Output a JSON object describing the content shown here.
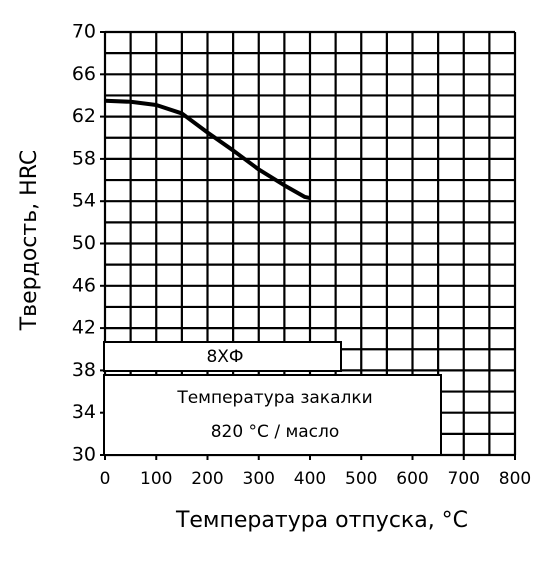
{
  "chart_data": {
    "type": "line",
    "xlabel": "Температура отпуска, °C",
    "ylabel": "Твердость, HRC",
    "x": [
      0,
      50,
      100,
      150,
      200,
      250,
      300,
      350,
      390,
      400
    ],
    "series": [
      {
        "name": "8ХФ",
        "color": "#000000",
        "values": [
          63.5,
          63.4,
          63.1,
          62.3,
          60.5,
          58.8,
          57,
          55.5,
          54.4,
          54.3
        ]
      }
    ],
    "annotations": [
      "Температура закалки",
      "820 °C / масло"
    ],
    "xlim": [
      0,
      800
    ],
    "ylim": [
      30,
      70
    ],
    "xticks": [
      0,
      100,
      200,
      300,
      400,
      500,
      600,
      700,
      800
    ],
    "yticks": [
      30,
      34,
      38,
      42,
      46,
      50,
      54,
      58,
      62,
      66,
      70
    ],
    "xgrid": [
      0,
      50,
      100,
      150,
      200,
      250,
      300,
      350,
      400,
      450,
      500,
      550,
      600,
      650,
      700,
      750,
      800
    ],
    "ygrid": [
      30,
      32,
      34,
      36,
      38,
      40,
      42,
      44,
      46,
      48,
      50,
      52,
      54,
      56,
      58,
      60,
      62,
      64,
      66,
      68,
      70
    ],
    "grid": true
  }
}
